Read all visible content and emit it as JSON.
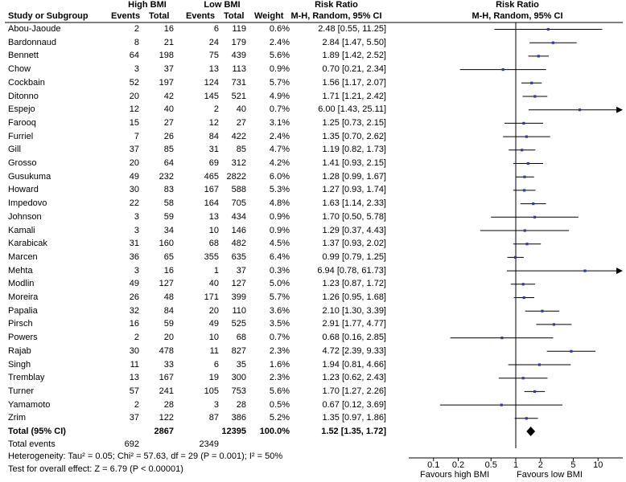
{
  "headers": {
    "group1": "High BMI",
    "group2": "Low BMI",
    "study": "Study or Subgroup",
    "events1": "Events",
    "total1": "Total",
    "events2": "Events",
    "total2": "Total",
    "weight": "Weight",
    "rr_title": "Risk Ratio",
    "rr_method": "M-H, Random, 95% CI",
    "plot_title": "Risk Ratio",
    "plot_method": "M-H, Random, 95% CI"
  },
  "studies": [
    {
      "name": "Abou-Jaoude",
      "e1": "2",
      "t1": "16",
      "e2": "6",
      "t2": "119",
      "weight": "0.6%",
      "ci_text": "2.48 [0.55, 11.25]"
    },
    {
      "name": "Bardonnaud",
      "e1": "8",
      "t1": "21",
      "e2": "24",
      "t2": "179",
      "weight": "2.4%",
      "ci_text": "2.84 [1.47, 5.50]"
    },
    {
      "name": "Bennett",
      "e1": "64",
      "t1": "198",
      "e2": "75",
      "t2": "439",
      "weight": "5.6%",
      "ci_text": "1.89 [1.42, 2.52]"
    },
    {
      "name": "Chow",
      "e1": "3",
      "t1": "37",
      "e2": "13",
      "t2": "113",
      "weight": "0.9%",
      "ci_text": "0.70 [0.21, 2.34]"
    },
    {
      "name": "Cockbain",
      "e1": "52",
      "t1": "197",
      "e2": "124",
      "t2": "731",
      "weight": "5.7%",
      "ci_text": "1.56 [1.17, 2.07]"
    },
    {
      "name": "Ditonno",
      "e1": "20",
      "t1": "42",
      "e2": "145",
      "t2": "521",
      "weight": "4.9%",
      "ci_text": "1.71 [1.21, 2.42]"
    },
    {
      "name": "Espejo",
      "e1": "12",
      "t1": "40",
      "e2": "2",
      "t2": "40",
      "weight": "0.7%",
      "ci_text": "6.00 [1.43, 25.11]"
    },
    {
      "name": "Farooq",
      "e1": "15",
      "t1": "27",
      "e2": "12",
      "t2": "27",
      "weight": "3.1%",
      "ci_text": "1.25 [0.73, 2.15]"
    },
    {
      "name": "Furriel",
      "e1": "7",
      "t1": "26",
      "e2": "84",
      "t2": "422",
      "weight": "2.4%",
      "ci_text": "1.35 [0.70, 2.62]"
    },
    {
      "name": "Gill",
      "e1": "37",
      "t1": "85",
      "e2": "31",
      "t2": "85",
      "weight": "4.7%",
      "ci_text": "1.19 [0.82, 1.73]"
    },
    {
      "name": "Grosso",
      "e1": "20",
      "t1": "64",
      "e2": "69",
      "t2": "312",
      "weight": "4.2%",
      "ci_text": "1.41 [0.93, 2.15]"
    },
    {
      "name": "Gusukuma",
      "e1": "49",
      "t1": "232",
      "e2": "465",
      "t2": "2822",
      "weight": "6.0%",
      "ci_text": "1.28 [0.99, 1.67]"
    },
    {
      "name": "Howard",
      "e1": "30",
      "t1": "83",
      "e2": "167",
      "t2": "588",
      "weight": "5.3%",
      "ci_text": "1.27 [0.93, 1.74]"
    },
    {
      "name": "Impedovo",
      "e1": "22",
      "t1": "58",
      "e2": "164",
      "t2": "705",
      "weight": "4.8%",
      "ci_text": "1.63 [1.14, 2.33]"
    },
    {
      "name": "Johnson",
      "e1": "3",
      "t1": "59",
      "e2": "13",
      "t2": "434",
      "weight": "0.9%",
      "ci_text": "1.70 [0.50, 5.78]"
    },
    {
      "name": "Kamali",
      "e1": "3",
      "t1": "34",
      "e2": "10",
      "t2": "146",
      "weight": "0.9%",
      "ci_text": "1.29 [0.37, 4.43]"
    },
    {
      "name": "Karabicak",
      "e1": "31",
      "t1": "160",
      "e2": "68",
      "t2": "482",
      "weight": "4.5%",
      "ci_text": "1.37 [0.93, 2.02]"
    },
    {
      "name": "Marcen",
      "e1": "36",
      "t1": "65",
      "e2": "355",
      "t2": "635",
      "weight": "6.4%",
      "ci_text": "0.99 [0.79, 1.25]"
    },
    {
      "name": "Mehta",
      "e1": "3",
      "t1": "16",
      "e2": "1",
      "t2": "37",
      "weight": "0.3%",
      "ci_text": "6.94 [0.78, 61.73]"
    },
    {
      "name": "Modlin",
      "e1": "49",
      "t1": "127",
      "e2": "40",
      "t2": "127",
      "weight": "5.0%",
      "ci_text": "1.23 [0.87, 1.72]"
    },
    {
      "name": "Moreira",
      "e1": "26",
      "t1": "48",
      "e2": "171",
      "t2": "399",
      "weight": "5.7%",
      "ci_text": "1.26 [0.95, 1.68]"
    },
    {
      "name": "Papalia",
      "e1": "32",
      "t1": "84",
      "e2": "20",
      "t2": "110",
      "weight": "3.6%",
      "ci_text": "2.10 [1.30, 3.39]"
    },
    {
      "name": "Pirsch",
      "e1": "16",
      "t1": "59",
      "e2": "49",
      "t2": "525",
      "weight": "3.5%",
      "ci_text": "2.91 [1.77, 4.77]"
    },
    {
      "name": "Powers",
      "e1": "2",
      "t1": "20",
      "e2": "10",
      "t2": "68",
      "weight": "0.7%",
      "ci_text": "0.68 [0.16, 2.85]"
    },
    {
      "name": "Rajab",
      "e1": "30",
      "t1": "478",
      "e2": "11",
      "t2": "827",
      "weight": "2.3%",
      "ci_text": "4.72 [2.39, 9.33]"
    },
    {
      "name": "Singh",
      "e1": "11",
      "t1": "33",
      "e2": "6",
      "t2": "35",
      "weight": "1.6%",
      "ci_text": "1.94 [0.81, 4.66]"
    },
    {
      "name": "Tremblay",
      "e1": "13",
      "t1": "167",
      "e2": "19",
      "t2": "300",
      "weight": "2.3%",
      "ci_text": "1.23 [0.62, 2.43]"
    },
    {
      "name": "Turner",
      "e1": "57",
      "t1": "241",
      "e2": "105",
      "t2": "753",
      "weight": "5.6%",
      "ci_text": "1.70 [1.27, 2.26]"
    },
    {
      "name": "Yamamoto",
      "e1": "2",
      "t1": "28",
      "e2": "3",
      "t2": "28",
      "weight": "0.5%",
      "ci_text": "0.67 [0.12, 3.69]"
    },
    {
      "name": "Zrim",
      "e1": "37",
      "t1": "122",
      "e2": "87",
      "t2": "386",
      "weight": "5.2%",
      "ci_text": "1.35 [0.97, 1.86]"
    }
  ],
  "total": {
    "label": "Total (95% CI)",
    "t1": "2867",
    "t2": "12395",
    "weight": "100.0%",
    "ci_text": "1.52 [1.35, 1.72]"
  },
  "total_events": {
    "label": "Total events",
    "e1": "692",
    "e2": "2349"
  },
  "heterogeneity": "Heterogeneity: Tau² = 0.05; Chi² = 57.63, df = 29 (P = 0.001); I² = 50%",
  "overall_effect": "Test for overall effect: Z = 6.79 (P < 0.00001)",
  "axis_labels": [
    "0.1",
    "0.2",
    "0.5",
    "1",
    "2",
    "5",
    "10"
  ],
  "favours_left": "Favours high BMI",
  "favours_right": "Favours low BMI",
  "chart_data": {
    "type": "scatter",
    "title": "Risk Ratio M-H, Random, 95% CI",
    "xscale": "log",
    "xlim": [
      0.05,
      20
    ],
    "ticks": [
      0.1,
      0.2,
      0.5,
      1,
      2,
      5,
      10
    ],
    "reference_line": 1,
    "studies": [
      {
        "rr": 2.48,
        "lo": 0.55,
        "hi": 11.25
      },
      {
        "rr": 2.84,
        "lo": 1.47,
        "hi": 5.5
      },
      {
        "rr": 1.89,
        "lo": 1.42,
        "hi": 2.52
      },
      {
        "rr": 0.7,
        "lo": 0.21,
        "hi": 2.34
      },
      {
        "rr": 1.56,
        "lo": 1.17,
        "hi": 2.07
      },
      {
        "rr": 1.71,
        "lo": 1.21,
        "hi": 2.42
      },
      {
        "rr": 6.0,
        "lo": 1.43,
        "hi": 25.11
      },
      {
        "rr": 1.25,
        "lo": 0.73,
        "hi": 2.15
      },
      {
        "rr": 1.35,
        "lo": 0.7,
        "hi": 2.62
      },
      {
        "rr": 1.19,
        "lo": 0.82,
        "hi": 1.73
      },
      {
        "rr": 1.41,
        "lo": 0.93,
        "hi": 2.15
      },
      {
        "rr": 1.28,
        "lo": 0.99,
        "hi": 1.67
      },
      {
        "rr": 1.27,
        "lo": 0.93,
        "hi": 1.74
      },
      {
        "rr": 1.63,
        "lo": 1.14,
        "hi": 2.33
      },
      {
        "rr": 1.7,
        "lo": 0.5,
        "hi": 5.78
      },
      {
        "rr": 1.29,
        "lo": 0.37,
        "hi": 4.43
      },
      {
        "rr": 1.37,
        "lo": 0.93,
        "hi": 2.02
      },
      {
        "rr": 0.99,
        "lo": 0.79,
        "hi": 1.25
      },
      {
        "rr": 6.94,
        "lo": 0.78,
        "hi": 61.73
      },
      {
        "rr": 1.23,
        "lo": 0.87,
        "hi": 1.72
      },
      {
        "rr": 1.26,
        "lo": 0.95,
        "hi": 1.68
      },
      {
        "rr": 2.1,
        "lo": 1.3,
        "hi": 3.39
      },
      {
        "rr": 2.91,
        "lo": 1.77,
        "hi": 4.77
      },
      {
        "rr": 0.68,
        "lo": 0.16,
        "hi": 2.85
      },
      {
        "rr": 4.72,
        "lo": 2.39,
        "hi": 9.33
      },
      {
        "rr": 1.94,
        "lo": 0.81,
        "hi": 4.66
      },
      {
        "rr": 1.23,
        "lo": 0.62,
        "hi": 2.43
      },
      {
        "rr": 1.7,
        "lo": 1.27,
        "hi": 2.26
      },
      {
        "rr": 0.67,
        "lo": 0.12,
        "hi": 3.69
      },
      {
        "rr": 1.35,
        "lo": 0.97,
        "hi": 1.86
      }
    ],
    "pooled": {
      "rr": 1.52,
      "lo": 1.35,
      "hi": 1.72
    },
    "xlabel_left": "Favours high BMI",
    "xlabel_right": "Favours low BMI"
  }
}
